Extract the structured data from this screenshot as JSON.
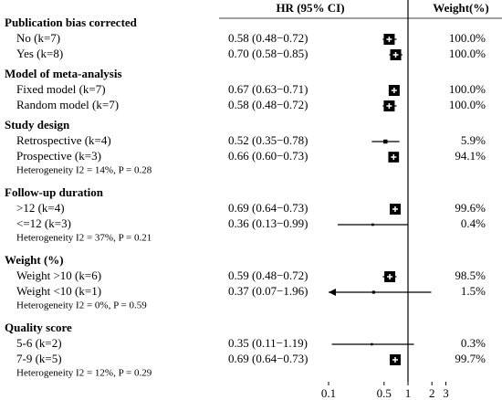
{
  "chart_data": {
    "type": "forest",
    "column_headers": [
      "HR (95% CI)",
      "Weight(%)"
    ],
    "log_scale": true,
    "xlim": [
      0.1,
      3
    ],
    "xticks": [
      0.1,
      0.5,
      1,
      2,
      3
    ],
    "reference_line": 1,
    "color": "#000000",
    "groups": [
      {
        "title": "Publication  bias corrected",
        "rows": [
          {
            "label": "No (k=7)",
            "value": 0.58,
            "lower": 0.48,
            "upper": 0.72,
            "value_label": "0.58 (0.48−0.72)",
            "weight": 100.0,
            "weight_label": "100.0%"
          },
          {
            "label": "Yes (k=8)",
            "value": 0.7,
            "lower": 0.58,
            "upper": 0.85,
            "value_label": "0.70 (0.58−0.85)",
            "weight": 100.0,
            "weight_label": "100.0%"
          }
        ]
      },
      {
        "title": "Model of meta-analysis",
        "rows": [
          {
            "label": "Fixed model (k=7)",
            "value": 0.67,
            "lower": 0.63,
            "upper": 0.71,
            "value_label": "0.67 (0.63−0.71)",
            "weight": 100.0,
            "weight_label": "100.0%"
          },
          {
            "label": "Random  model (k=7)",
            "value": 0.58,
            "lower": 0.48,
            "upper": 0.72,
            "value_label": "0.58 (0.48−0.72)",
            "weight": 100.0,
            "weight_label": "100.0%"
          }
        ]
      },
      {
        "title": "Study design",
        "rows": [
          {
            "label": "Retrospective (k=4)",
            "value": 0.52,
            "lower": 0.35,
            "upper": 0.78,
            "value_label": "0.52 (0.35−0.78)",
            "weight": 5.9,
            "weight_label": "5.9%"
          },
          {
            "label": "Prospective (k=3)",
            "value": 0.66,
            "lower": 0.6,
            "upper": 0.73,
            "value_label": "0.66 (0.60−0.73)",
            "weight": 94.1,
            "weight_label": "94.1%"
          }
        ],
        "heterogeneity": "Heterogeneity  I2 = 14%, P = 0.28"
      },
      {
        "title": "Follow-up duration",
        "rows": [
          {
            "label": ">12 (k=4)",
            "value": 0.69,
            "lower": 0.64,
            "upper": 0.73,
            "value_label": "0.69 (0.64−0.73)",
            "weight": 99.6,
            "weight_label": "99.6%"
          },
          {
            "label": "<=12 (k=3)",
            "value": 0.36,
            "lower": 0.13,
            "upper": 0.99,
            "value_label": "0.36 (0.13−0.99)",
            "weight": 0.4,
            "weight_label": "0.4%"
          }
        ],
        "heterogeneity": "Heterogeneity  I2 = 37%, P = 0.21"
      },
      {
        "title": "Weight (%)",
        "rows": [
          {
            "label": "Weight >10 (k=6)",
            "value": 0.59,
            "lower": 0.48,
            "upper": 0.72,
            "value_label": "0.59 (0.48−0.72)",
            "weight": 98.5,
            "weight_label": "98.5%"
          },
          {
            "label": "Weight <10 (k=1)",
            "value": 0.37,
            "lower": 0.07,
            "upper": 1.96,
            "value_label": "0.37 (0.07−1.96)",
            "weight": 1.5,
            "weight_label": "1.5%"
          }
        ],
        "heterogeneity": "Heterogeneity  I2 = 0%, P = 0.59"
      },
      {
        "title": "Quality score",
        "rows": [
          {
            "label": "5-6 (k=2)",
            "value": 0.35,
            "lower": 0.11,
            "upper": 1.19,
            "value_label": "0.35 (0.11−1.19)",
            "weight": 0.3,
            "weight_label": "0.3%"
          },
          {
            "label": "7-9 (k=5)",
            "value": 0.69,
            "lower": 0.64,
            "upper": 0.73,
            "value_label": "0.69 (0.64−0.73)",
            "weight": 99.7,
            "weight_label": "99.7%"
          }
        ],
        "heterogeneity": "Heterogeneity  I2 = 12%, P = 0.29"
      }
    ]
  }
}
